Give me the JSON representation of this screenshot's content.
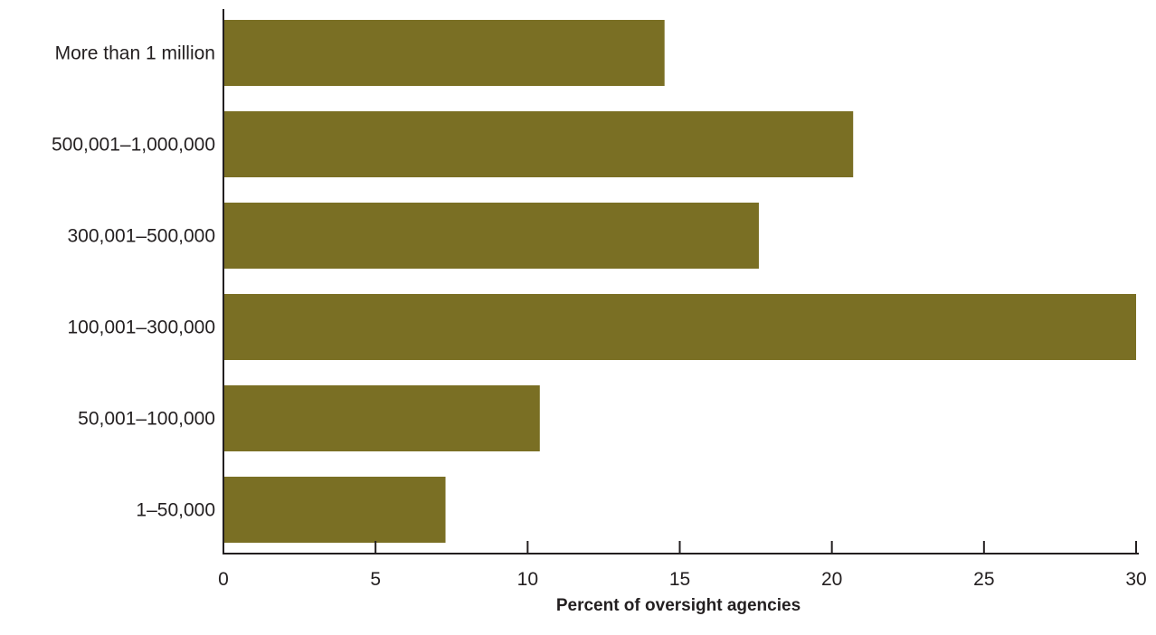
{
  "chart_data": {
    "type": "bar",
    "orientation": "horizontal",
    "categories": [
      "More than 1 million",
      "500,001–1,000,000",
      "300,001–500,000",
      "100,001–300,000",
      "50,001–100,000",
      "1–50,000"
    ],
    "values": [
      14.5,
      20.7,
      17.6,
      30.0,
      10.4,
      7.3
    ],
    "title": "",
    "xlabel": "Percent of oversight agencies",
    "ylabel": "",
    "xlim": [
      0,
      30
    ],
    "xticks": [
      0,
      5,
      10,
      15,
      20,
      25,
      30
    ],
    "grid": false,
    "bar_color": "#7a6f24",
    "axis_color": "#231f20"
  }
}
